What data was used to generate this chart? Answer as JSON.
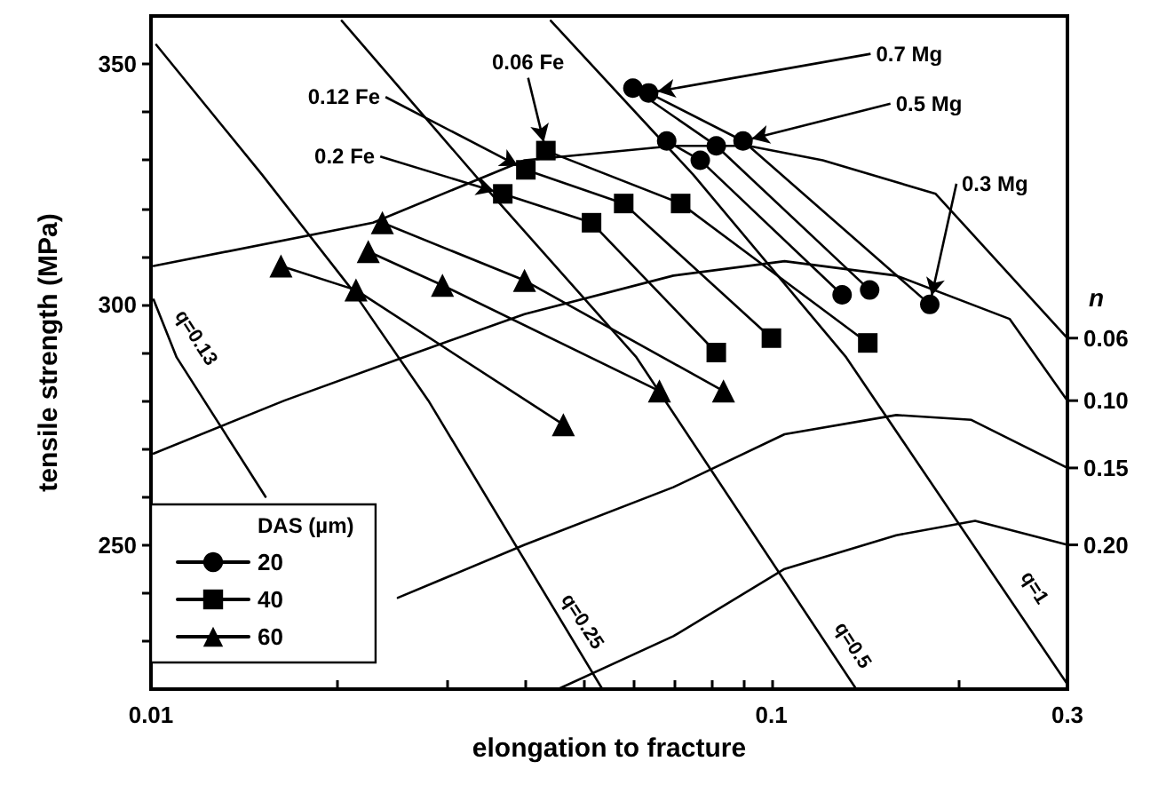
{
  "chart_data": {
    "type": "line",
    "xlabel": "elongation to fracture",
    "ylabel": "tensile strength (MPa)",
    "y2label": "n",
    "legend_title": "DAS (µm)",
    "log": "x",
    "grid": false,
    "legend": "bottom left",
    "xlim": [
      0.01,
      0.3
    ],
    "ylim": [
      220,
      360
    ],
    "xticks": [
      0.01,
      {
        "value": 0.02,
        "label": null
      },
      {
        "value": 0.03,
        "label": null
      },
      {
        "value": 0.04,
        "label": null
      },
      {
        "value": 0.05,
        "label": null
      },
      {
        "value": 0.06,
        "label": null
      },
      {
        "value": 0.07,
        "label": null
      },
      {
        "value": 0.08,
        "label": null
      },
      {
        "value": 0.09,
        "label": null
      },
      0.1,
      {
        "value": 0.2,
        "label": null
      },
      0.3
    ],
    "yticks": [
      {
        "value": 230,
        "label": null
      },
      {
        "value": 240,
        "label": null
      },
      250,
      {
        "value": 260,
        "label": null
      },
      {
        "value": 270,
        "label": null
      },
      {
        "value": 280,
        "label": null
      },
      {
        "value": 290,
        "label": null
      },
      300,
      {
        "value": 310,
        "label": null
      },
      {
        "value": 320,
        "label": null
      },
      {
        "value": 330,
        "label": null
      },
      {
        "value": 340,
        "label": null
      },
      350
    ],
    "series": [
      {
        "name": "20",
        "color": "#000000",
        "marker": "circle",
        "line_style": "solid",
        "x": [
          0.0598,
          0.0815,
          0.144,
          null,
          0.0634,
          0.09,
          0.18,
          null,
          0.0678,
          0.0768,
          0.13
        ],
        "values": [
          345,
          333,
          303,
          null,
          344,
          334,
          300,
          null,
          334,
          330,
          302
        ]
      },
      {
        "name": "40",
        "color": "#000000",
        "marker": "square",
        "line_style": "solid",
        "x": [
          0.0433,
          0.0714,
          0.143,
          null,
          0.0402,
          0.0578,
          0.1,
          null,
          0.0369,
          0.0513,
          0.0815
        ],
        "values": [
          332,
          321,
          292,
          null,
          328,
          321,
          293,
          null,
          323,
          317,
          290
        ]
      },
      {
        "name": "60",
        "color": "#000000",
        "marker": "triangle",
        "line_style": "solid",
        "x": [
          0.0236,
          0.04,
          0.0837,
          null,
          0.0224,
          0.0295,
          0.066,
          null,
          0.0162,
          0.0214,
          0.0462
        ],
        "values": [
          317,
          305,
          282,
          null,
          311,
          304,
          282,
          null,
          308,
          303,
          275
        ]
      },
      {
        "color": "#000000",
        "marker": "none",
        "line_style": "solid",
        "x": [
          0.0101,
          0.0228,
          0.04,
          0.0695,
          0.0918,
          0.121,
          0.184,
          0.3
        ],
        "values": [
          308,
          317,
          330,
          333,
          333,
          330,
          323,
          293
        ]
      },
      {
        "color": "#000000",
        "marker": "none",
        "line_style": "solid",
        "x": [
          0.0101,
          0.0164,
          0.0255,
          0.04,
          0.0695,
          0.105,
          0.159,
          0.242,
          0.3
        ],
        "values": [
          269,
          280,
          289,
          298,
          306,
          309,
          306,
          297,
          280
        ]
      },
      {
        "color": "#000000",
        "marker": "none",
        "line_style": "solid",
        "x": [
          0.025,
          0.04,
          0.0695,
          0.105,
          0.159,
          0.21,
          0.3
        ],
        "values": [
          239,
          250,
          262,
          273,
          277,
          276,
          266
        ]
      },
      {
        "color": "#000000",
        "marker": "none",
        "line_style": "solid",
        "x": [
          0.0453,
          0.0695,
          0.105,
          0.159,
          0.213,
          0.3
        ],
        "values": [
          220,
          231,
          245,
          252,
          255,
          250
        ]
      },
      {
        "color": "#000000",
        "marker": "none",
        "line_style": "solid",
        "x": [
          0.0101,
          0.011,
          0.0153
        ],
        "values": [
          301,
          289,
          260
        ]
      },
      {
        "color": "#000000",
        "marker": "none",
        "line_style": "solid",
        "x": [
          0.0102,
          0.0151,
          0.0211,
          0.028,
          0.0534
        ],
        "values": [
          354,
          327,
          303,
          280,
          220
        ]
      },
      {
        "color": "#000000",
        "marker": "none",
        "line_style": "solid",
        "x": [
          0.0203,
          0.0348,
          0.0606,
          0.137
        ],
        "values": [
          359,
          324,
          289,
          220
        ]
      },
      {
        "color": "#000000",
        "marker": "none",
        "line_style": "solid",
        "x": [
          0.0441,
          0.0748,
          0.132,
          0.3
        ],
        "values": [
          359,
          327,
          289,
          221
        ]
      }
    ],
    "annotations": [
      {
        "text": "q=0.13",
        "x": 0.0118,
        "y": 293
      },
      {
        "text": "q=0.25",
        "x": 0.0495,
        "y": 234
      },
      {
        "text": "q=0.5",
        "x": 0.135,
        "y": 229
      },
      {
        "text": "q=1",
        "x": 0.265,
        "y": 241
      },
      {
        "text": "0.7 Mg",
        "x": 0.0634,
        "y": 344
      },
      {
        "text": "0.5 Mg",
        "x": 0.09,
        "y": 334
      },
      {
        "text": "0.3 Mg",
        "x": 0.18,
        "y": 300
      },
      {
        "text": "0.06 Fe",
        "x": 0.0433,
        "y": 332
      },
      {
        "text": "0.12 Fe",
        "x": 0.0402,
        "y": 328
      },
      {
        "text": "0.2 Fe",
        "x": 0.0369,
        "y": 323
      },
      "0.06",
      "0.10",
      "0.15",
      "0.20"
    ]
  }
}
